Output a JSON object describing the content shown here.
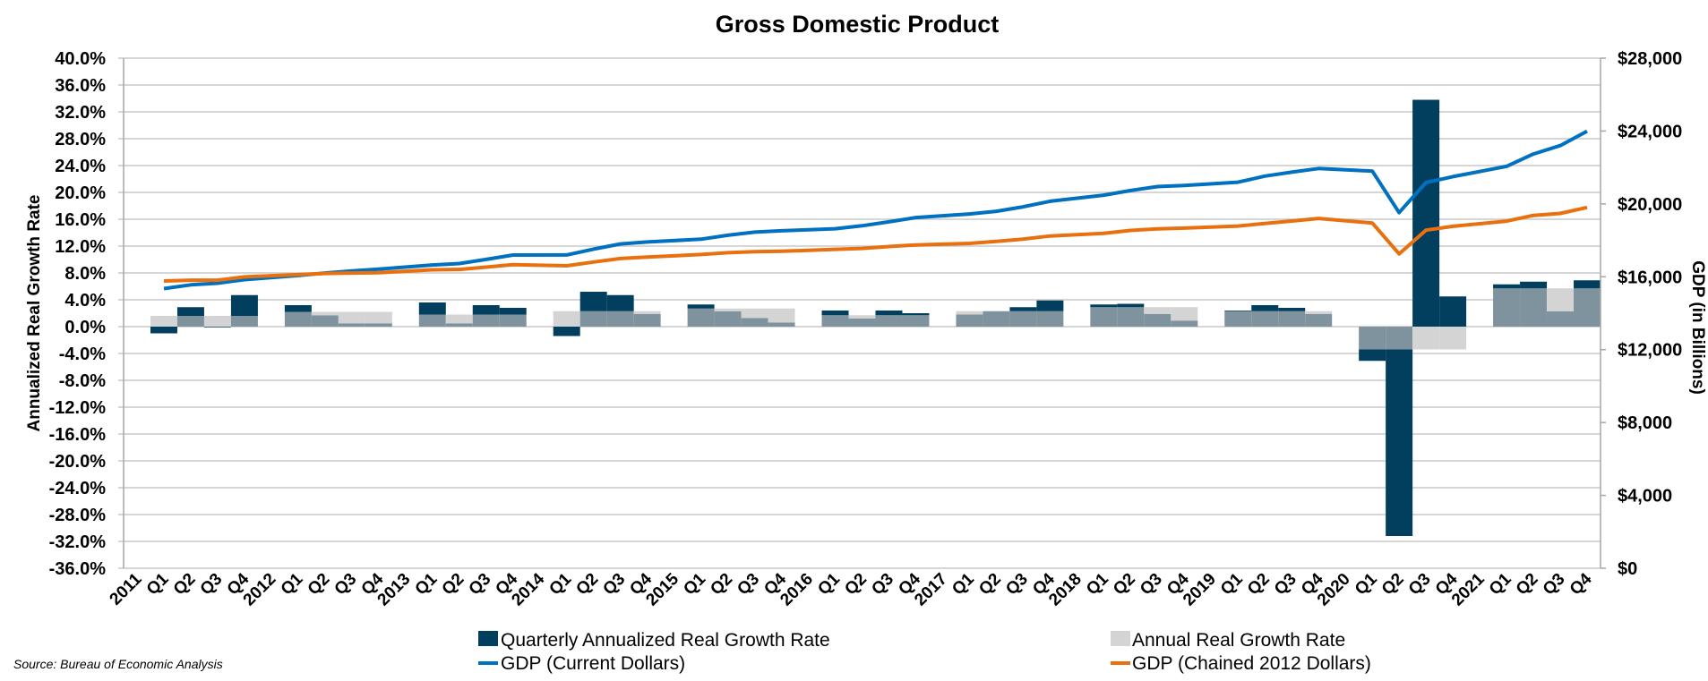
{
  "chart_data": {
    "type": "bar",
    "title": "Gross Domestic Product",
    "ylabel": "Annualized Real Growth Rate",
    "y2label": "GDP (in Billions)",
    "source": "Source: Bureau of Economic Analysis",
    "ylim": [
      -36,
      40
    ],
    "y2lim": [
      0,
      28000
    ],
    "grid": true,
    "legend_position": "bottom",
    "y_ticks": [
      "40.0%",
      "36.0%",
      "32.0%",
      "28.0%",
      "24.0%",
      "20.0%",
      "16.0%",
      "12.0%",
      "8.0%",
      "4.0%",
      "0.0%",
      "-4.0%",
      "-8.0%",
      "-12.0%",
      "-16.0%",
      "-20.0%",
      "-24.0%",
      "-28.0%",
      "-32.0%",
      "-36.0%"
    ],
    "y2_ticks": [
      "$28,000",
      "$24,000",
      "$20,000",
      "$16,000",
      "$12,000",
      "$8,000",
      "$4,000",
      "$0"
    ],
    "categories": [
      "2011",
      "Q1",
      "Q2",
      "Q3",
      "Q4",
      "2012",
      "Q1",
      "Q2",
      "Q3",
      "Q4",
      "2013",
      "Q1",
      "Q2",
      "Q3",
      "Q4",
      "2014",
      "Q1",
      "Q2",
      "Q3",
      "Q4",
      "2015",
      "Q1",
      "Q2",
      "Q3",
      "Q4",
      "2016",
      "Q1",
      "Q2",
      "Q3",
      "Q4",
      "2017",
      "Q1",
      "Q2",
      "Q3",
      "Q4",
      "2018",
      "Q1",
      "Q2",
      "Q3",
      "Q4",
      "2019",
      "Q1",
      "Q2",
      "Q3",
      "Q4",
      "2020",
      "Q1",
      "Q2",
      "Q3",
      "Q4",
      "2021",
      "Q1",
      "Q2",
      "Q3",
      "Q4"
    ],
    "series": [
      {
        "name": "Quarterly Annualized Real Growth Rate",
        "type": "bar",
        "axis": "left",
        "color": "#023f5f",
        "values": [
          null,
          -1.0,
          2.9,
          -0.1,
          4.7,
          null,
          3.2,
          1.7,
          0.5,
          0.5,
          null,
          3.6,
          0.5,
          3.2,
          2.8,
          null,
          -1.4,
          5.2,
          4.7,
          1.9,
          null,
          3.3,
          2.3,
          1.3,
          0.6,
          null,
          2.4,
          1.2,
          2.4,
          2.0,
          null,
          1.8,
          2.3,
          2.9,
          3.9,
          null,
          3.3,
          3.4,
          1.9,
          0.9,
          null,
          2.4,
          3.2,
          2.8,
          1.9,
          null,
          -5.1,
          -31.2,
          33.8,
          4.5,
          null,
          6.3,
          6.7,
          2.3,
          6.9
        ]
      },
      {
        "name": "Annual Real Growth Rate",
        "type": "bar",
        "axis": "left",
        "color": "#d4d4d4",
        "values": [
          null,
          1.6,
          1.6,
          1.6,
          1.6,
          null,
          2.2,
          2.2,
          2.2,
          2.2,
          null,
          1.8,
          1.8,
          1.8,
          1.8,
          null,
          2.3,
          2.3,
          2.3,
          2.3,
          null,
          2.7,
          2.7,
          2.7,
          2.7,
          null,
          1.7,
          1.7,
          1.7,
          1.7,
          null,
          2.3,
          2.3,
          2.3,
          2.3,
          null,
          2.9,
          2.9,
          2.9,
          2.9,
          null,
          2.3,
          2.3,
          2.3,
          2.3,
          null,
          -3.4,
          -3.4,
          -3.4,
          -3.4,
          null,
          5.7,
          5.7,
          5.7,
          5.7
        ]
      },
      {
        "name": "GDP (Current Dollars)",
        "type": "line",
        "axis": "right",
        "color": "#0070c0",
        "values": [
          null,
          15351,
          15558,
          15648,
          15842,
          null,
          16069,
          16207,
          16319,
          16420,
          null,
          16648,
          16728,
          16953,
          17192,
          null,
          17197,
          17518,
          17804,
          17912,
          null,
          18063,
          18280,
          18452,
          18526,
          null,
          18639,
          18797,
          19016,
          19253,
          null,
          19446,
          19593,
          19842,
          20146,
          null,
          20479,
          20735,
          20949,
          21011,
          null,
          21190,
          21524,
          21740,
          21944,
          null,
          21802,
          19520,
          21171,
          21494,
          null,
          22061,
          22741,
          23202,
          23992
        ]
      },
      {
        "name": "GDP (Chained 2012 Dollars)",
        "type": "line",
        "axis": "right",
        "color": "#e8700e",
        "values": [
          null,
          15770,
          15814,
          15813,
          15995,
          null,
          16115,
          16183,
          16204,
          16224,
          null,
          16381,
          16403,
          16532,
          16664,
          null,
          16605,
          16810,
          17002,
          17083,
          null,
          17222,
          17320,
          17374,
          17401,
          null,
          17505,
          17557,
          17661,
          17750,
          null,
          17832,
          17938,
          18066,
          18241,
          null,
          18388,
          18545,
          18633,
          18674,
          null,
          18783,
          18927,
          19059,
          19202,
          null,
          18952,
          17258,
          18561,
          18768,
          null,
          19056,
          19368,
          19479,
          19806
        ]
      }
    ],
    "overlap_color": "#7e939e"
  }
}
